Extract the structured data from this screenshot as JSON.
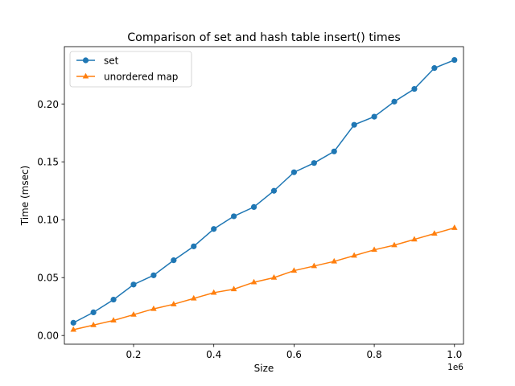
{
  "chart_data": {
    "type": "line",
    "title": "Comparison of set and hash table insert() times",
    "xlabel": "Size",
    "ylabel": "Time (msec)",
    "x_offset_label": "1e6",
    "x_scale_factor": 1000000,
    "xlim": [
      0.0275,
      1.0225
    ],
    "ylim": [
      -0.0075,
      0.2495
    ],
    "x_ticks": [
      0.2,
      0.4,
      0.6,
      0.8,
      1.0
    ],
    "x_tick_labels": [
      "0.2",
      "0.4",
      "0.6",
      "0.8",
      "1.0"
    ],
    "y_ticks": [
      0.0,
      0.05,
      0.1,
      0.15,
      0.2
    ],
    "y_tick_labels": [
      "0.00",
      "0.05",
      "0.10",
      "0.15",
      "0.20"
    ],
    "grid": false,
    "legend_position": "top-left",
    "x": [
      0.05,
      0.1,
      0.15,
      0.2,
      0.25,
      0.3,
      0.35,
      0.4,
      0.45,
      0.5,
      0.55,
      0.6,
      0.65,
      0.7,
      0.75,
      0.8,
      0.85,
      0.9,
      0.95,
      1.0
    ],
    "series": [
      {
        "name": "set",
        "color": "#1f77b4",
        "marker": "circle",
        "values": [
          0.011,
          0.02,
          0.031,
          0.044,
          0.052,
          0.065,
          0.077,
          0.092,
          0.103,
          0.111,
          0.125,
          0.141,
          0.149,
          0.159,
          0.182,
          0.189,
          0.202,
          0.213,
          0.231,
          0.238
        ]
      },
      {
        "name": "unordered map",
        "color": "#ff7f0e",
        "marker": "triangle",
        "values": [
          0.005,
          0.009,
          0.013,
          0.018,
          0.023,
          0.027,
          0.032,
          0.037,
          0.04,
          0.046,
          0.05,
          0.056,
          0.06,
          0.064,
          0.069,
          0.074,
          0.078,
          0.083,
          0.088,
          0.093
        ]
      }
    ]
  }
}
